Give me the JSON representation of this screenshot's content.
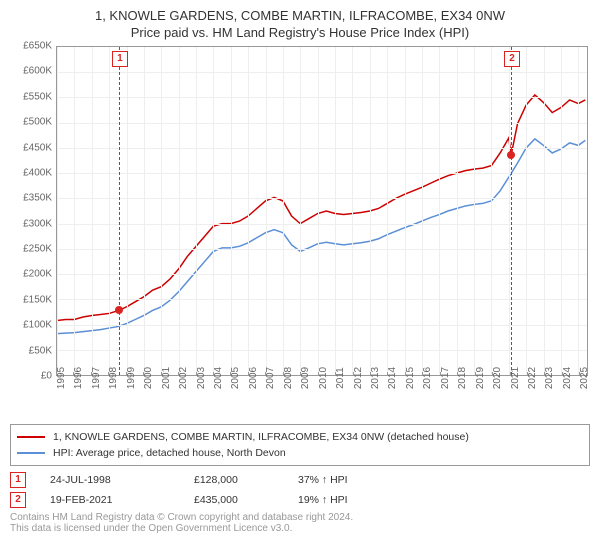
{
  "title": "1, KNOWLE GARDENS, COMBE MARTIN, ILFRACOMBE, EX34 0NW",
  "subtitle": "Price paid vs. HM Land Registry's House Price Index (HPI)",
  "chart": {
    "type": "line",
    "background_color": "#ffffff",
    "grid_color": "#eeeeee",
    "axis_color": "#999999",
    "label_color": "#666666",
    "label_fontsize": 10,
    "ylim": [
      0,
      650000
    ],
    "ytick_step": 50000,
    "yticks": [
      "£0",
      "£50K",
      "£100K",
      "£150K",
      "£200K",
      "£250K",
      "£300K",
      "£350K",
      "£400K",
      "£450K",
      "£500K",
      "£550K",
      "£600K",
      "£650K"
    ],
    "xlim": [
      1995,
      2025.5
    ],
    "xticks": [
      1995,
      1996,
      1997,
      1998,
      1999,
      2000,
      2001,
      2002,
      2003,
      2004,
      2005,
      2006,
      2007,
      2008,
      2009,
      2010,
      2011,
      2012,
      2013,
      2014,
      2015,
      2016,
      2017,
      2018,
      2019,
      2020,
      2021,
      2022,
      2023,
      2024,
      2025
    ],
    "series": [
      {
        "name": "price_paid",
        "label": "1, KNOWLE GARDENS, COMBE MARTIN, ILFRACOMBE, EX34 0NW (detached house)",
        "color": "#cc0000",
        "line_width": 1.5,
        "points": [
          [
            1995.0,
            108000
          ],
          [
            1995.5,
            110000
          ],
          [
            1996.0,
            110000
          ],
          [
            1996.5,
            115000
          ],
          [
            1997.0,
            118000
          ],
          [
            1997.5,
            120000
          ],
          [
            1998.0,
            122000
          ],
          [
            1998.56,
            128000
          ],
          [
            1999.0,
            135000
          ],
          [
            1999.5,
            145000
          ],
          [
            2000.0,
            155000
          ],
          [
            2000.5,
            168000
          ],
          [
            2001.0,
            175000
          ],
          [
            2001.5,
            190000
          ],
          [
            2002.0,
            210000
          ],
          [
            2002.5,
            235000
          ],
          [
            2003.0,
            255000
          ],
          [
            2003.5,
            275000
          ],
          [
            2004.0,
            295000
          ],
          [
            2004.5,
            300000
          ],
          [
            2005.0,
            300000
          ],
          [
            2005.5,
            305000
          ],
          [
            2006.0,
            315000
          ],
          [
            2006.5,
            330000
          ],
          [
            2007.0,
            345000
          ],
          [
            2007.5,
            352000
          ],
          [
            2008.0,
            345000
          ],
          [
            2008.5,
            315000
          ],
          [
            2009.0,
            300000
          ],
          [
            2009.5,
            310000
          ],
          [
            2010.0,
            320000
          ],
          [
            2010.5,
            325000
          ],
          [
            2011.0,
            320000
          ],
          [
            2011.5,
            318000
          ],
          [
            2012.0,
            320000
          ],
          [
            2012.5,
            322000
          ],
          [
            2013.0,
            325000
          ],
          [
            2013.5,
            330000
          ],
          [
            2014.0,
            340000
          ],
          [
            2014.5,
            350000
          ],
          [
            2015.0,
            358000
          ],
          [
            2015.5,
            365000
          ],
          [
            2016.0,
            372000
          ],
          [
            2016.5,
            380000
          ],
          [
            2017.0,
            388000
          ],
          [
            2017.5,
            395000
          ],
          [
            2018.0,
            400000
          ],
          [
            2018.5,
            405000
          ],
          [
            2019.0,
            408000
          ],
          [
            2019.5,
            410000
          ],
          [
            2020.0,
            415000
          ],
          [
            2020.5,
            440000
          ],
          [
            2021.0,
            470000
          ],
          [
            2021.13,
            435000
          ],
          [
            2021.5,
            498000
          ],
          [
            2022.0,
            535000
          ],
          [
            2022.5,
            555000
          ],
          [
            2023.0,
            540000
          ],
          [
            2023.5,
            520000
          ],
          [
            2024.0,
            530000
          ],
          [
            2024.5,
            545000
          ],
          [
            2025.0,
            538000
          ],
          [
            2025.4,
            545000
          ]
        ]
      },
      {
        "name": "hpi",
        "label": "HPI: Average price, detached house, North Devon",
        "color": "#5b8fd6",
        "line_width": 1.5,
        "points": [
          [
            1995.0,
            82000
          ],
          [
            1995.5,
            83000
          ],
          [
            1996.0,
            84000
          ],
          [
            1996.5,
            86000
          ],
          [
            1997.0,
            88000
          ],
          [
            1997.5,
            90000
          ],
          [
            1998.0,
            93000
          ],
          [
            1998.5,
            96000
          ],
          [
            1999.0,
            102000
          ],
          [
            1999.5,
            110000
          ],
          [
            2000.0,
            118000
          ],
          [
            2000.5,
            128000
          ],
          [
            2001.0,
            135000
          ],
          [
            2001.5,
            148000
          ],
          [
            2002.0,
            165000
          ],
          [
            2002.5,
            185000
          ],
          [
            2003.0,
            205000
          ],
          [
            2003.5,
            225000
          ],
          [
            2004.0,
            245000
          ],
          [
            2004.5,
            252000
          ],
          [
            2005.0,
            252000
          ],
          [
            2005.5,
            255000
          ],
          [
            2006.0,
            262000
          ],
          [
            2006.5,
            272000
          ],
          [
            2007.0,
            282000
          ],
          [
            2007.5,
            288000
          ],
          [
            2008.0,
            282000
          ],
          [
            2008.5,
            258000
          ],
          [
            2009.0,
            245000
          ],
          [
            2009.5,
            252000
          ],
          [
            2010.0,
            260000
          ],
          [
            2010.5,
            263000
          ],
          [
            2011.0,
            260000
          ],
          [
            2011.5,
            258000
          ],
          [
            2012.0,
            260000
          ],
          [
            2012.5,
            262000
          ],
          [
            2013.0,
            265000
          ],
          [
            2013.5,
            270000
          ],
          [
            2014.0,
            278000
          ],
          [
            2014.5,
            285000
          ],
          [
            2015.0,
            292000
          ],
          [
            2015.5,
            298000
          ],
          [
            2016.0,
            305000
          ],
          [
            2016.5,
            312000
          ],
          [
            2017.0,
            318000
          ],
          [
            2017.5,
            325000
          ],
          [
            2018.0,
            330000
          ],
          [
            2018.5,
            335000
          ],
          [
            2019.0,
            338000
          ],
          [
            2019.5,
            340000
          ],
          [
            2020.0,
            345000
          ],
          [
            2020.5,
            365000
          ],
          [
            2021.0,
            392000
          ],
          [
            2021.5,
            420000
          ],
          [
            2022.0,
            450000
          ],
          [
            2022.5,
            468000
          ],
          [
            2023.0,
            455000
          ],
          [
            2023.5,
            440000
          ],
          [
            2024.0,
            448000
          ],
          [
            2024.5,
            460000
          ],
          [
            2025.0,
            455000
          ],
          [
            2025.4,
            465000
          ]
        ]
      }
    ],
    "markers": [
      {
        "n": "1",
        "year": 1998.56,
        "value": 128000
      },
      {
        "n": "2",
        "year": 2021.13,
        "value": 435000
      }
    ]
  },
  "legend": {
    "items": [
      {
        "color": "#cc0000",
        "label": "1, KNOWLE GARDENS, COMBE MARTIN, ILFRACOMBE, EX34 0NW (detached house)"
      },
      {
        "color": "#5b8fd6",
        "label": "HPI: Average price, detached house, North Devon"
      }
    ]
  },
  "transactions": [
    {
      "n": "1",
      "date": "24-JUL-1998",
      "price": "£128,000",
      "delta": "37% ↑ HPI"
    },
    {
      "n": "2",
      "date": "19-FEB-2021",
      "price": "£435,000",
      "delta": "19% ↑ HPI"
    }
  ],
  "footnote": {
    "line1": "Contains HM Land Registry data © Crown copyright and database right 2024.",
    "line2": "This data is licensed under the Open Government Licence v3.0."
  }
}
